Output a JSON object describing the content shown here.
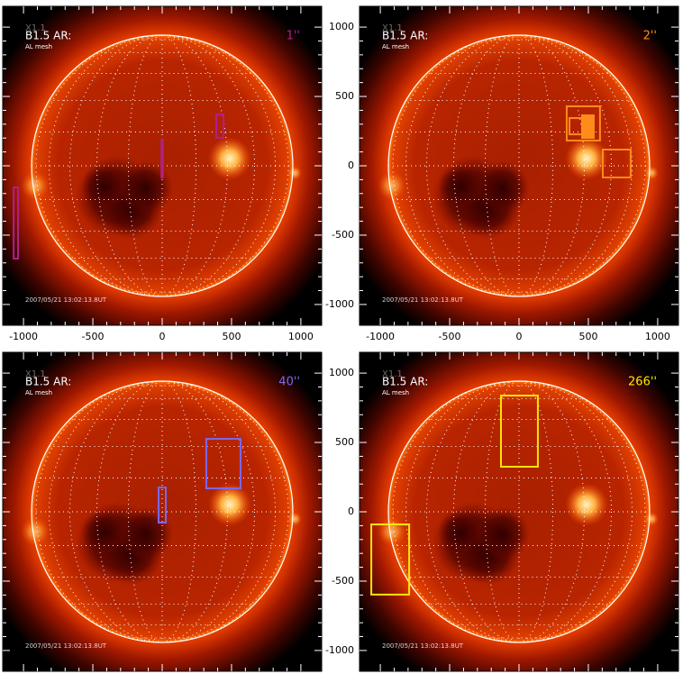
{
  "axis": {
    "lim": [
      -1150,
      1150
    ],
    "ticks": [
      -1000,
      -500,
      0,
      500,
      1000
    ]
  },
  "labels": {
    "flare": "X1.1",
    "region": "B1.5 AR:",
    "mesh": "AL mesh",
    "date": "2007/05/21 13:02:13.8UT"
  },
  "panels": [
    {
      "tag": "1''",
      "color": "#b0208a",
      "labeled_axes": [
        "x"
      ],
      "boxes": [
        {
          "x": [
            390,
            442
          ],
          "y": [
            201,
            370
          ]
        },
        {
          "x": [
            -5,
            5
          ],
          "y": [
            -84,
            188
          ]
        },
        {
          "x": [
            -1071,
            -1039
          ],
          "y": [
            -669,
            -156
          ]
        }
      ]
    },
    {
      "tag": "2''",
      "color": "#ff8c1a",
      "labeled_axes": [
        "x",
        "y"
      ],
      "boxes": [
        {
          "x": [
            344,
            584
          ],
          "y": [
            182,
            429
          ]
        },
        {
          "x": [
            364,
            455
          ],
          "y": [
            227,
            344
          ]
        },
        {
          "x": [
            455,
            539
          ],
          "y": [
            201,
            364
          ],
          "filled": true
        },
        {
          "x": [
            604,
            805
          ],
          "y": [
            -84,
            117
          ]
        }
      ]
    },
    {
      "tag": "40''",
      "color": "#7b68ee",
      "labeled_axes": [],
      "boxes": [
        {
          "x": [
            318,
            565
          ],
          "y": [
            169,
            526
          ]
        },
        {
          "x": [
            -26,
            26
          ],
          "y": [
            -78,
            175
          ]
        }
      ]
    },
    {
      "tag": "266''",
      "color": "#ffe600",
      "labeled_axes": [
        "y"
      ],
      "boxes": [
        {
          "x": [
            -130,
            136
          ],
          "y": [
            325,
            838
          ]
        },
        {
          "x": [
            -1065,
            -792
          ],
          "y": [
            -597,
            -91
          ]
        }
      ]
    }
  ]
}
